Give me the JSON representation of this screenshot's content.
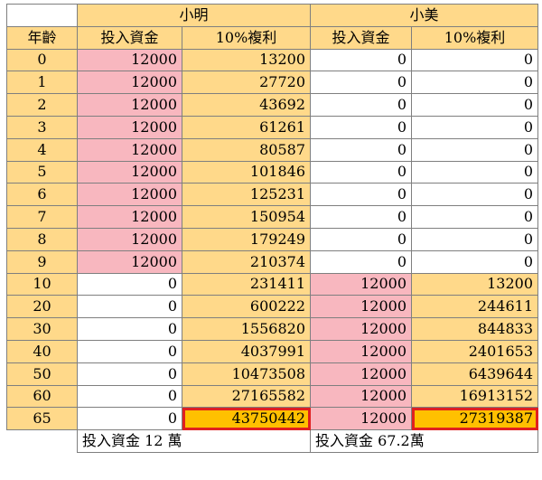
{
  "header": {
    "group1": "小明",
    "group2": "小美",
    "col_age": "年齡",
    "col_invest": "投入資金",
    "col_compound": "10%複利"
  },
  "rows": [
    {
      "age": "0",
      "a": "12000",
      "b": "13200",
      "c": "0",
      "d": "0"
    },
    {
      "age": "1",
      "a": "12000",
      "b": "27720",
      "c": "0",
      "d": "0"
    },
    {
      "age": "2",
      "a": "12000",
      "b": "43692",
      "c": "0",
      "d": "0"
    },
    {
      "age": "3",
      "a": "12000",
      "b": "61261",
      "c": "0",
      "d": "0"
    },
    {
      "age": "4",
      "a": "12000",
      "b": "80587",
      "c": "0",
      "d": "0"
    },
    {
      "age": "5",
      "a": "12000",
      "b": "101846",
      "c": "0",
      "d": "0"
    },
    {
      "age": "6",
      "a": "12000",
      "b": "125231",
      "c": "0",
      "d": "0"
    },
    {
      "age": "7",
      "a": "12000",
      "b": "150954",
      "c": "0",
      "d": "0"
    },
    {
      "age": "8",
      "a": "12000",
      "b": "179249",
      "c": "0",
      "d": "0"
    },
    {
      "age": "9",
      "a": "12000",
      "b": "210374",
      "c": "0",
      "d": "0"
    },
    {
      "age": "10",
      "a": "0",
      "b": "231411",
      "c": "12000",
      "d": "13200"
    },
    {
      "age": "20",
      "a": "0",
      "b": "600222",
      "c": "12000",
      "d": "244611"
    },
    {
      "age": "30",
      "a": "0",
      "b": "1556820",
      "c": "12000",
      "d": "844833"
    },
    {
      "age": "40",
      "a": "0",
      "b": "4037991",
      "c": "12000",
      "d": "2401653"
    },
    {
      "age": "50",
      "a": "0",
      "b": "10473508",
      "c": "12000",
      "d": "6439644"
    },
    {
      "age": "60",
      "a": "0",
      "b": "27165582",
      "c": "12000",
      "d": "16913152"
    },
    {
      "age": "65",
      "a": "0",
      "b": "43750442",
      "c": "12000",
      "d": "27319387"
    }
  ],
  "footer": {
    "left": "投入資金 12 萬",
    "right": "投入資金 67.2萬"
  },
  "colors": {
    "highlight_border": "#e02020",
    "header_yellow": "#ffd98a",
    "pink": "#f8b7bf",
    "gold": "#ffc000"
  }
}
